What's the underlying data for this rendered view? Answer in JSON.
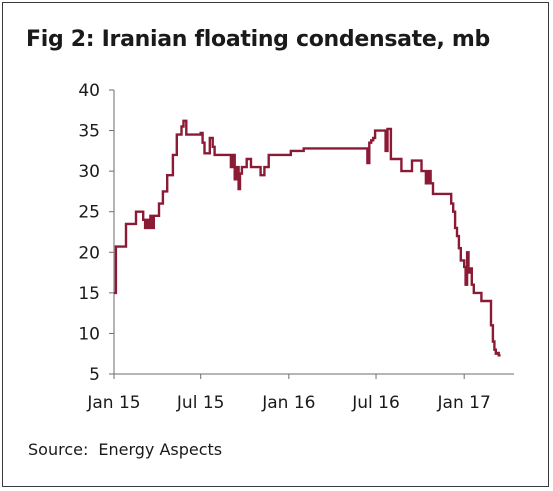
{
  "chart_data": {
    "type": "line",
    "title": "Fig 2: Iranian floating condensate, mb",
    "source_label": "Source:",
    "source_text": "Energy Aspects",
    "xlabel": "",
    "ylabel": "",
    "ylim": [
      5,
      40
    ],
    "yticks": [
      "40",
      "35",
      "30",
      "25",
      "20",
      "15",
      "10",
      "5"
    ],
    "ytick_values": [
      40,
      35,
      30,
      25,
      20,
      15,
      10,
      5
    ],
    "xlim": [
      "2015-01-01",
      "2017-04-15"
    ],
    "xticks": [
      "Jan 15",
      "Jul 15",
      "Jan 16",
      "Jul 16",
      "Jan 17"
    ],
    "xtick_dates": [
      "2015-01-01",
      "2015-07-01",
      "2016-01-01",
      "2016-07-01",
      "2017-01-01"
    ],
    "grid": false,
    "line_color": "#8b1a35",
    "series": [
      {
        "x": [
          "2015-01-01",
          "2015-01-05",
          "2015-01-22",
          "2015-01-26",
          "2015-02-03",
          "2015-02-16",
          "2015-02-23",
          "2015-03-03",
          "2015-03-07",
          "2015-03-10",
          "2015-03-14",
          "2015-03-18",
          "2015-03-21",
          "2015-03-25",
          "2015-03-30",
          "2015-04-05",
          "2015-04-13",
          "2015-04-22",
          "2015-04-30",
          "2015-05-04",
          "2015-05-12",
          "2015-05-17",
          "2015-05-22",
          "2015-05-26",
          "2015-06-01",
          "2015-06-05",
          "2015-06-10",
          "2015-06-14",
          "2015-06-17",
          "2015-06-21",
          "2015-06-25",
          "2015-07-01",
          "2015-07-05",
          "2015-07-09",
          "2015-07-20",
          "2015-07-26",
          "2015-07-30",
          "2015-08-03",
          "2015-08-08",
          "2015-08-16",
          "2015-09-02",
          "2015-09-07",
          "2015-09-10",
          "2015-09-14",
          "2015-09-18",
          "2015-09-21",
          "2015-09-25",
          "2015-09-29",
          "2015-10-05",
          "2015-10-14",
          "2015-10-23",
          "2015-10-28",
          "2015-11-03",
          "2015-11-11",
          "2015-11-20",
          "2015-11-28",
          "2015-12-05",
          "2015-12-14",
          "2015-12-19",
          "2016-01-05",
          "2016-01-16",
          "2016-02-01",
          "2016-02-19",
          "2016-03-08",
          "2016-03-28",
          "2016-04-18",
          "2016-05-11",
          "2016-05-25",
          "2016-06-08",
          "2016-06-13",
          "2016-06-17",
          "2016-06-21",
          "2016-06-25",
          "2016-06-29",
          "2016-07-04",
          "2016-07-08",
          "2016-07-13",
          "2016-07-17",
          "2016-07-21",
          "2016-07-25",
          "2016-08-01",
          "2016-08-12",
          "2016-08-23",
          "2016-09-04",
          "2016-09-14",
          "2016-09-23",
          "2016-10-04",
          "2016-10-13",
          "2016-10-18",
          "2016-10-23",
          "2016-10-28",
          "2016-11-06",
          "2016-11-20",
          "2016-11-27",
          "2016-12-01",
          "2016-12-05",
          "2016-12-09",
          "2016-12-13",
          "2016-12-17",
          "2016-12-21",
          "2016-12-25",
          "2016-12-29",
          "2017-01-01",
          "2017-01-04",
          "2017-01-07",
          "2017-01-10",
          "2017-01-13",
          "2017-01-17",
          "2017-01-21",
          "2017-01-27",
          "2017-02-06",
          "2017-02-16",
          "2017-02-26",
          "2017-03-02",
          "2017-03-05",
          "2017-03-08",
          "2017-03-11",
          "2017-03-14",
          "2017-03-18"
        ],
        "y": [
          15,
          20.7,
          20.7,
          23.5,
          23.5,
          25,
          25,
          24,
          23,
          24,
          23,
          24.5,
          23,
          24.5,
          24.5,
          26,
          27.5,
          29.5,
          29.5,
          32,
          34.5,
          34.5,
          35.5,
          36.2,
          34.5,
          34.5,
          34.5,
          34.5,
          34.5,
          34.5,
          34.5,
          34.7,
          33.5,
          32.2,
          34.1,
          33,
          32,
          32,
          32,
          32,
          30.5,
          32,
          29,
          30.5,
          27.8,
          29.7,
          30.5,
          30.5,
          31.5,
          30.5,
          30.5,
          30.5,
          29.5,
          30.5,
          32,
          32,
          32,
          32,
          32,
          32.5,
          32.5,
          32.8,
          32.8,
          32.8,
          32.8,
          32.8,
          32.8,
          32.8,
          32.8,
          31,
          33.5,
          33.8,
          34.1,
          35,
          35,
          35,
          35,
          35,
          32.5,
          35.2,
          31.5,
          31.5,
          30,
          30,
          31.3,
          31.3,
          30,
          28.5,
          30,
          28.5,
          27.2,
          27.2,
          27.2,
          27.2,
          27.2,
          26,
          25,
          23,
          22,
          20.5,
          19,
          19,
          18.2,
          16,
          20,
          17.5,
          18,
          16,
          15,
          15,
          14,
          14,
          11,
          9,
          8,
          7.5,
          7.6,
          7.3,
          7.3
        ]
      }
    ]
  }
}
